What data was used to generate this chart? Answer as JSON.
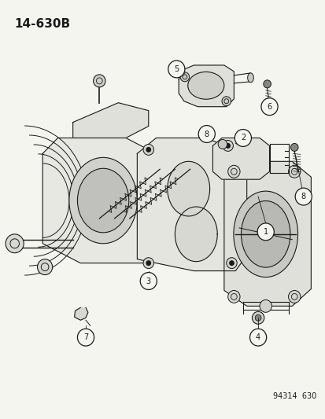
{
  "title": "14-630B",
  "footer": "94314  630",
  "bg_color": "#f5f5f0",
  "line_color": "#1a1a1a",
  "title_fontsize": 11,
  "footer_fontsize": 7,
  "fig_width": 4.14,
  "fig_height": 5.33,
  "dpi": 100
}
